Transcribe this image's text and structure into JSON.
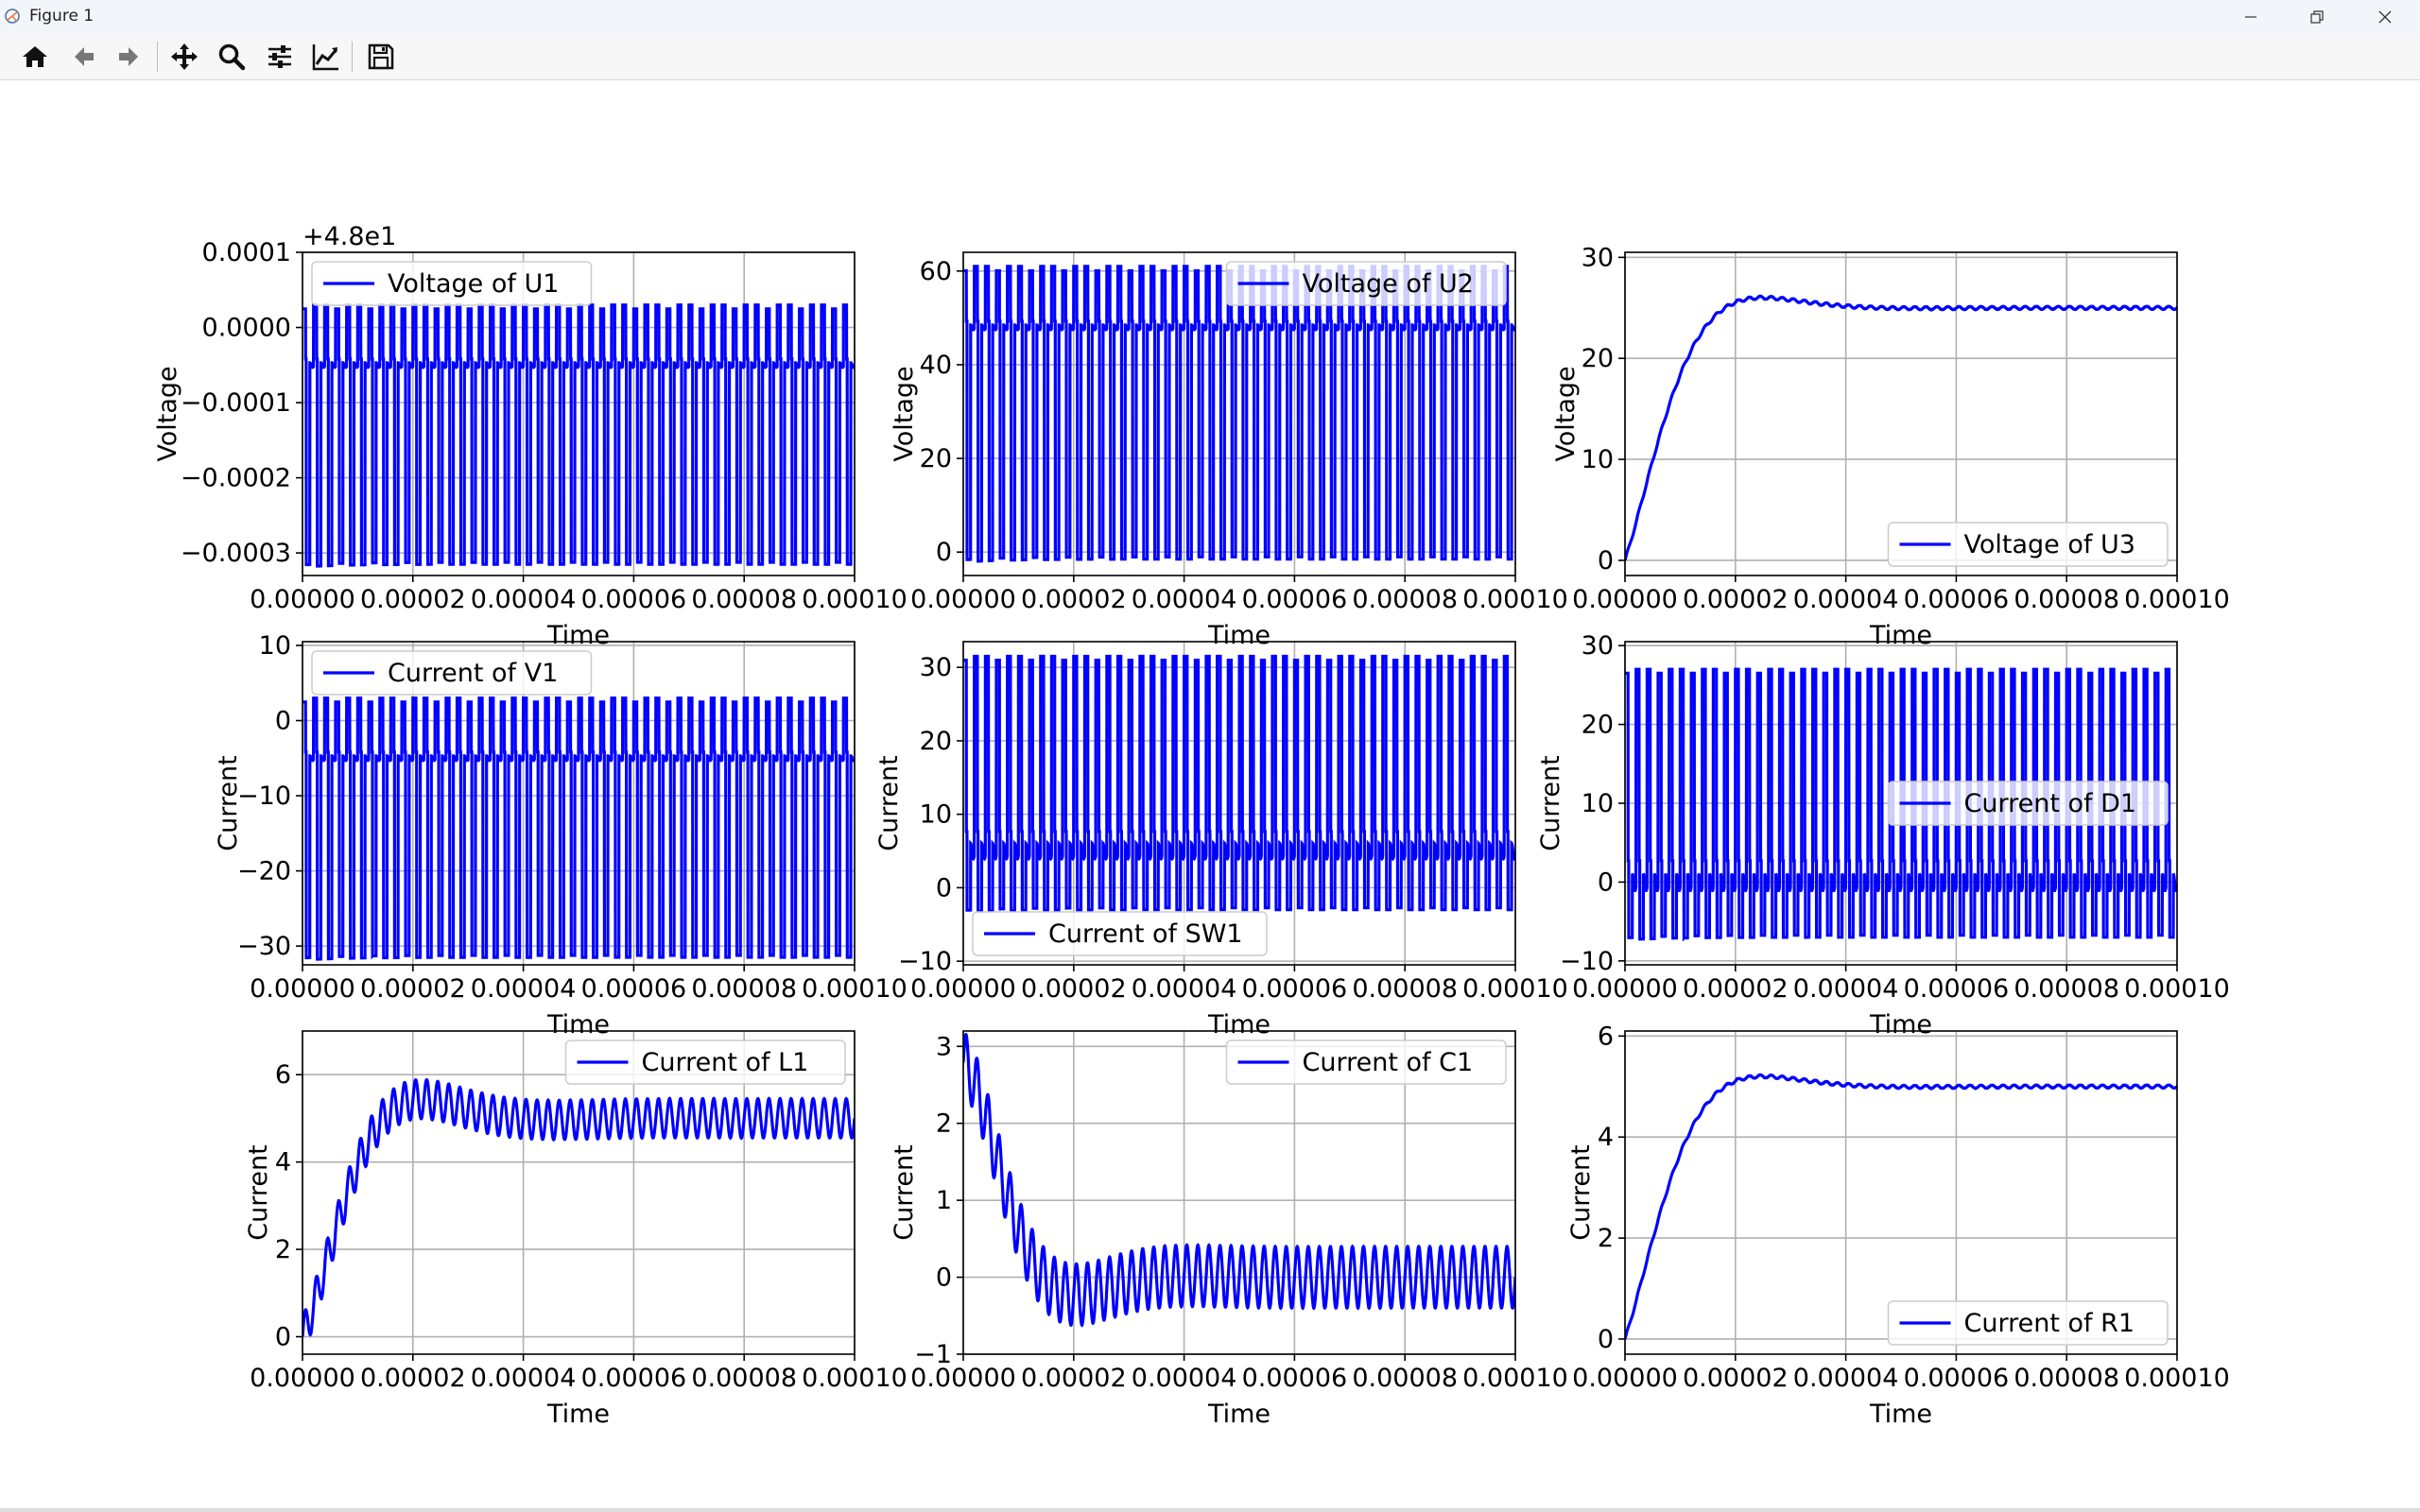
{
  "window": {
    "title": "Figure 1"
  },
  "toolbar": {
    "buttons": [
      "home-icon",
      "back-icon",
      "forward-icon",
      "pan-icon",
      "zoom-icon",
      "configure-subplots-icon",
      "edit-axes-icon",
      "save-icon"
    ]
  },
  "colors": {
    "line": "#0000ff",
    "grid": "#b0b0b0",
    "toolbar_bg": "#f7f7f7",
    "titlebar_bg": "#f2f6fb"
  },
  "chart_data": [
    {
      "type": "line",
      "series": [
        {
          "name": "Voltage of U1"
        }
      ],
      "xlabel": "Time",
      "ylabel": "Voltage",
      "offset_text": "+4.8e1",
      "xlim": [
        0,
        0.0001
      ],
      "ylim": [
        -0.00033,
        0.0001
      ],
      "yticks": [
        0.0001,
        0.0,
        -0.0001,
        -0.0002,
        -0.0003
      ],
      "ytick_labels": [
        "0.0001",
        "0.0000",
        "−0.0001",
        "−0.0002",
        "−0.0003"
      ],
      "legend_loc": "upper left",
      "waveform": {
        "kind": "switching",
        "high": 3e-05,
        "low": -0.000315,
        "mid": -5e-05,
        "switching_period": 2e-06
      }
    },
    {
      "type": "line",
      "series": [
        {
          "name": "Voltage of U2"
        }
      ],
      "xlabel": "Time",
      "ylabel": "Voltage",
      "xlim": [
        0,
        0.0001
      ],
      "ylim": [
        -5,
        64
      ],
      "yticks": [
        0,
        20,
        40,
        60
      ],
      "ytick_labels": [
        "0",
        "20",
        "40",
        "60"
      ],
      "legend_loc": "upper right",
      "waveform": {
        "kind": "switching",
        "high": 61,
        "low": -1.5,
        "mid": 48,
        "switching_period": 2e-06
      }
    },
    {
      "type": "line",
      "series": [
        {
          "name": "Voltage of U3"
        }
      ],
      "xlabel": "Time",
      "ylabel": "Voltage",
      "xlim": [
        0,
        0.0001
      ],
      "ylim": [
        -1.5,
        30.5
      ],
      "yticks": [
        0,
        10,
        20,
        30
      ],
      "ytick_labels": [
        "0",
        "10",
        "20",
        "30"
      ],
      "legend_loc": "lower right",
      "waveform": {
        "kind": "step_response",
        "final": 25,
        "peak": 28.8,
        "peak_time": 2e-05,
        "ripple": 0.15
      }
    },
    {
      "type": "line",
      "series": [
        {
          "name": "Current of V1"
        }
      ],
      "xlabel": "Time",
      "ylabel": "Current",
      "xlim": [
        0,
        0.0001
      ],
      "ylim": [
        -32.5,
        10.5
      ],
      "yticks": [
        10,
        0,
        -10,
        -20,
        -30
      ],
      "ytick_labels": [
        "10",
        "0",
        "−10",
        "−20",
        "−30"
      ],
      "legend_loc": "upper left",
      "waveform": {
        "kind": "switching",
        "high": 3,
        "low": -31.5,
        "mid": -5,
        "switching_period": 2e-06
      }
    },
    {
      "type": "line",
      "series": [
        {
          "name": "Current of SW1"
        }
      ],
      "xlabel": "Time",
      "ylabel": "Current",
      "xlim": [
        0,
        0.0001
      ],
      "ylim": [
        -10.5,
        33.5
      ],
      "yticks": [
        -10,
        0,
        10,
        20,
        30
      ],
      "ytick_labels": [
        "−10",
        "0",
        "10",
        "20",
        "30"
      ],
      "legend_loc": "lower left",
      "waveform": {
        "kind": "switching",
        "high": 31.5,
        "low": -3,
        "mid": 5,
        "switching_period": 2e-06
      }
    },
    {
      "type": "line",
      "series": [
        {
          "name": "Current of D1"
        }
      ],
      "xlabel": "Time",
      "ylabel": "Current",
      "xlim": [
        0,
        0.0001
      ],
      "ylim": [
        -10.5,
        30.5
      ],
      "yticks": [
        -10,
        0,
        10,
        20,
        30
      ],
      "ytick_labels": [
        "−10",
        "0",
        "10",
        "20",
        "30"
      ],
      "legend_loc": "center right",
      "waveform": {
        "kind": "switching",
        "high": 27,
        "low": -7,
        "mid": 0,
        "switching_period": 2e-06
      }
    },
    {
      "type": "line",
      "series": [
        {
          "name": "Current of L1"
        }
      ],
      "xlabel": "Time",
      "ylabel": "Current",
      "xlim": [
        0,
        0.0001
      ],
      "ylim": [
        -0.4,
        7.0
      ],
      "yticks": [
        0,
        2,
        4,
        6
      ],
      "ytick_labels": [
        "0",
        "2",
        "4",
        "6"
      ],
      "legend_loc": "upper right",
      "waveform": {
        "kind": "ripple_response",
        "final": 5.0,
        "peak": 6.4,
        "peak_time": 1.4e-05,
        "ripple": 0.45
      }
    },
    {
      "type": "line",
      "series": [
        {
          "name": "Current of C1"
        }
      ],
      "xlabel": "Time",
      "ylabel": "Current",
      "xlim": [
        0,
        0.0001
      ],
      "ylim": [
        -1.0,
        3.2
      ],
      "yticks": [
        -1,
        0,
        1,
        2,
        3
      ],
      "ytick_labels": [
        "−1",
        "0",
        "1",
        "2",
        "3"
      ],
      "legend_loc": "upper right",
      "waveform": {
        "kind": "cap_current",
        "peak": 2.6,
        "peak_time": 6e-06,
        "ripple": 0.4
      }
    },
    {
      "type": "line",
      "series": [
        {
          "name": "Current of R1"
        }
      ],
      "xlabel": "Time",
      "ylabel": "Current",
      "xlim": [
        0,
        0.0001
      ],
      "ylim": [
        -0.3,
        6.1
      ],
      "yticks": [
        0,
        2,
        4,
        6
      ],
      "ytick_labels": [
        "0",
        "2",
        "4",
        "6"
      ],
      "legend_loc": "lower right",
      "waveform": {
        "kind": "step_response",
        "final": 5.0,
        "peak": 5.76,
        "peak_time": 2e-05,
        "ripple": 0.03
      }
    }
  ],
  "shared_xticks": [
    0,
    2e-05,
    4e-05,
    6e-05,
    8e-05,
    0.0001
  ],
  "shared_xtick_labels": [
    "0.00000",
    "0.00002",
    "0.00004",
    "0.00006",
    "0.00008",
    "0.00010"
  ]
}
